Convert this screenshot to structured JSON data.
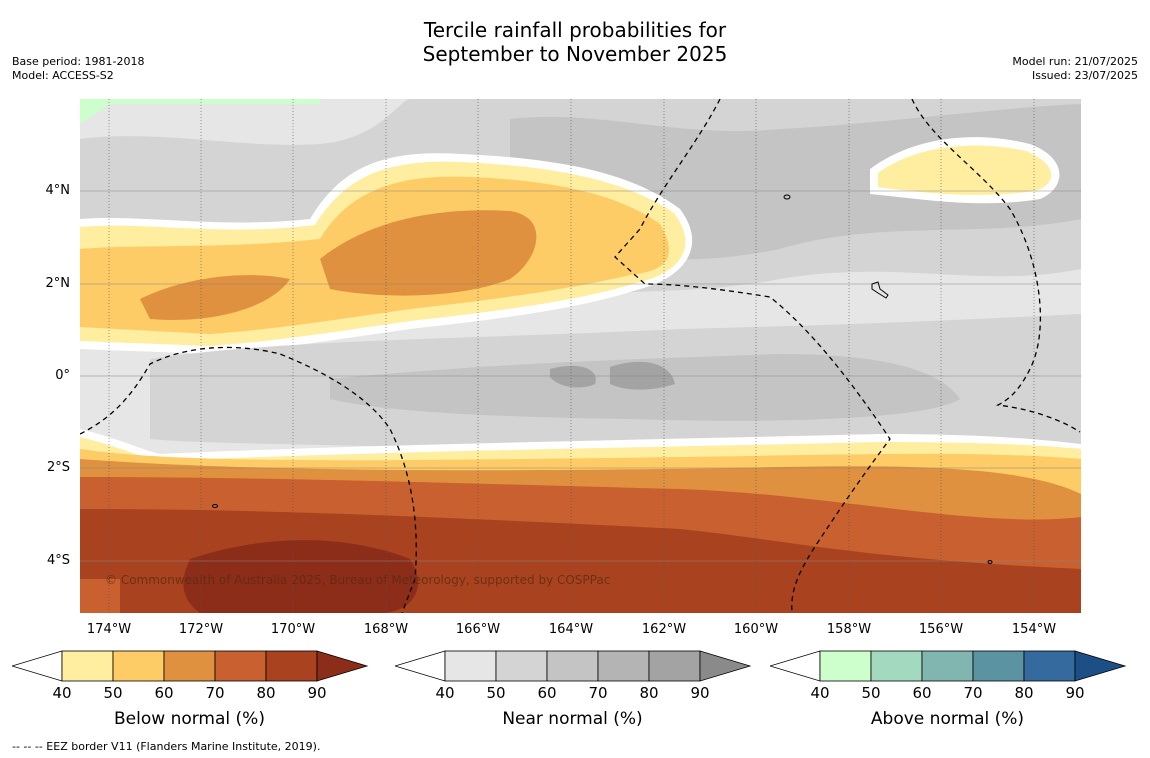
{
  "title_line1": "Tercile rainfall probabilities for",
  "title_line2": "September to November 2025",
  "meta_left": {
    "line1": "Base period: 1981-2018",
    "line2": "Model: ACCESS-S2"
  },
  "meta_right": {
    "line1": "Model run: 21/07/2025",
    "line2": "Issued: 23/07/2025"
  },
  "copyright": "© Commonwealth of Australia 2025, Bureau of Meteorology, supported by COSPPac",
  "lat_labels": [
    "4°N",
    "2°N",
    "0°",
    "2°S",
    "4°S"
  ],
  "lon_labels": [
    "174°W",
    "172°W",
    "170°W",
    "168°W",
    "166°W",
    "164°W",
    "162°W",
    "160°W",
    "158°W",
    "156°W",
    "154°W"
  ],
  "legends": [
    {
      "title": "Below normal (%)",
      "ticks": [
        "40",
        "50",
        "60",
        "70",
        "80",
        "90"
      ],
      "colors": [
        "#ffeda0",
        "#fdcc67",
        "#e0913f",
        "#c9602f",
        "#a9431f",
        "#8c2d1a"
      ]
    },
    {
      "title": "Near normal (%)",
      "ticks": [
        "40",
        "50",
        "60",
        "70",
        "80",
        "90"
      ],
      "colors": [
        "#e6e6e6",
        "#d4d4d4",
        "#c4c4c4",
        "#b4b4b4",
        "#a3a3a3",
        "#8a8a8a"
      ]
    },
    {
      "title": "Above normal (%)",
      "ticks": [
        "40",
        "50",
        "60",
        "70",
        "80",
        "90"
      ],
      "colors": [
        "#ccffcc",
        "#a3d9bf",
        "#80b5b0",
        "#5b93a3",
        "#356a9e",
        "#1b4f85"
      ]
    }
  ],
  "footer": "--  --  -- EEZ border V11 (Flanders Marine Institute, 2019)."
}
